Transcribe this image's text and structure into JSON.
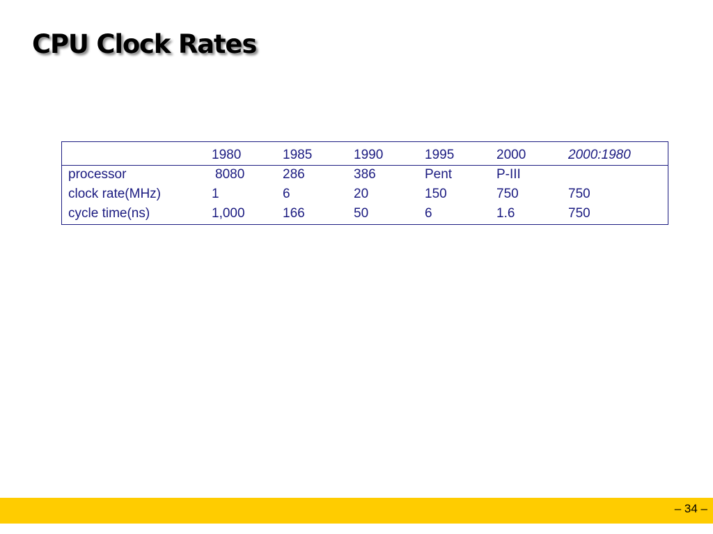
{
  "slide": {
    "title": "CPU Clock Rates",
    "page_number": "– 34 –",
    "footer_color": "#ffcc00"
  },
  "table": {
    "header": [
      "",
      "1980",
      "1985",
      "1990",
      "1995",
      "2000",
      "2000:1980"
    ],
    "rows": [
      [
        "processor",
        "8080",
        "286",
        "386",
        "Pent",
        "P-III",
        ""
      ],
      [
        "clock rate(MHz)",
        "1",
        "6",
        "20",
        "150",
        "750",
        "750"
      ],
      [
        "cycle time(ns)",
        "1,000",
        "166",
        "50",
        "6",
        "1.6",
        "750"
      ]
    ],
    "text_color": "#1a1a80"
  }
}
